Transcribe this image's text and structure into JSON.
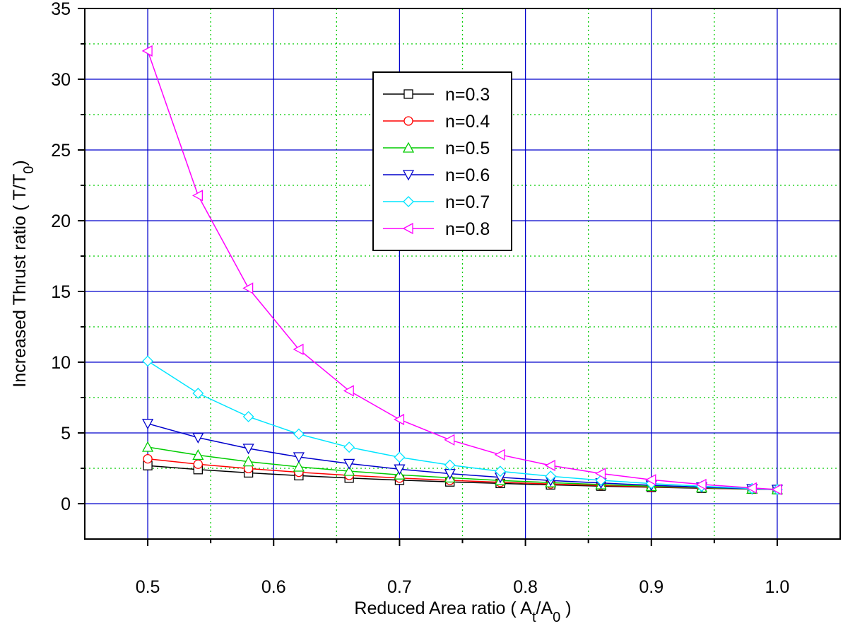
{
  "chart_data": {
    "type": "line",
    "xlabel": [
      {
        "text": "Reduced Area ratio   ( A"
      },
      {
        "text": "t",
        "sub": true
      },
      {
        "text": "/A"
      },
      {
        "text": "0",
        "sub": true
      },
      {
        "text": " )"
      }
    ],
    "ylabel": [
      {
        "text": "Increased Thrust ratio ( T/T"
      },
      {
        "text": "0",
        "sub": true
      },
      {
        "text": ")"
      }
    ],
    "x": [
      0.5,
      0.54,
      0.58,
      0.62,
      0.66,
      0.7,
      0.74,
      0.78,
      0.82,
      0.86,
      0.9,
      0.94,
      0.98,
      1.0
    ],
    "series": [
      {
        "name": "n=0.3",
        "color": "#000000",
        "marker": "square",
        "values": [
          2.69,
          2.41,
          2.18,
          1.98,
          1.81,
          1.66,
          1.54,
          1.43,
          1.33,
          1.24,
          1.16,
          1.09,
          1.03,
          1
        ]
      },
      {
        "name": "n=0.4",
        "color": "#ff0000",
        "marker": "circle",
        "values": [
          3.17,
          2.79,
          2.48,
          2.22,
          2.0,
          1.81,
          1.65,
          1.51,
          1.39,
          1.29,
          1.19,
          1.11,
          1.03,
          1
        ]
      },
      {
        "name": "n=0.5",
        "color": "#00cc00",
        "marker": "triangle-up",
        "values": [
          4.0,
          3.43,
          2.97,
          2.6,
          2.3,
          2.04,
          1.83,
          1.64,
          1.49,
          1.35,
          1.23,
          1.13,
          1.04,
          1
        ]
      },
      {
        "name": "n=0.6",
        "color": "#0000cc",
        "marker": "triangle-down",
        "values": [
          5.66,
          4.67,
          3.9,
          3.3,
          2.83,
          2.44,
          2.12,
          1.86,
          1.64,
          1.46,
          1.3,
          1.17,
          1.05,
          1
        ]
      },
      {
        "name": "n=0.7",
        "color": "#00e5ff",
        "marker": "diamond",
        "values": [
          10.08,
          7.8,
          6.15,
          4.92,
          3.99,
          3.28,
          2.73,
          2.29,
          1.94,
          1.65,
          1.42,
          1.23,
          1.07,
          1
        ]
      },
      {
        "name": "n=0.8",
        "color": "#ff00ff",
        "marker": "triangle-left",
        "values": [
          32,
          21.78,
          15.23,
          10.91,
          7.98,
          5.95,
          4.51,
          3.46,
          2.7,
          2.13,
          1.69,
          1.36,
          1.11,
          1
        ]
      }
    ],
    "xlim": [
      0.45,
      1.05
    ],
    "ylim": [
      -2.5,
      35
    ],
    "xticks": [
      0.5,
      0.6,
      0.7,
      0.8,
      0.9,
      {
        "value": 1,
        "label": "1.0"
      }
    ],
    "yticks": [
      0,
      5,
      10,
      15,
      20,
      25,
      30,
      35
    ],
    "xminor": [
      0.55,
      0.65,
      0.75,
      0.85,
      0.95
    ],
    "yminor": [
      2.5,
      7.5,
      12.5,
      17.5,
      22.5,
      27.5,
      32.5
    ],
    "grid": true,
    "major_grid_color": "#0000cc",
    "minor_grid_color": "#00cc00",
    "legend": "upper center"
  }
}
